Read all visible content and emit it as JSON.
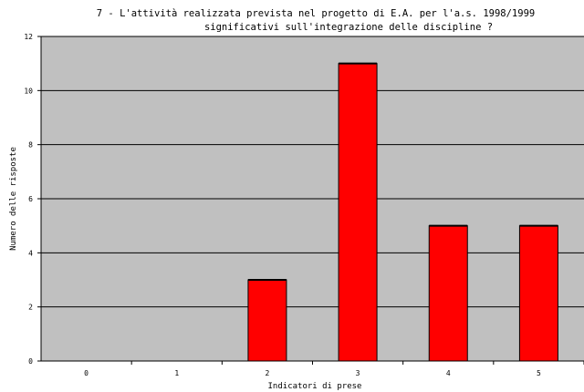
{
  "chart_data": {
    "type": "bar",
    "title_lines": [
      "7 - L'attività realizzata prevista nel progetto di E.A. per l'a.s. 1998/1999",
      "significativi sull'integrazione delle discipline ?"
    ],
    "xlabel": "Indicatori di prese",
    "ylabel": "Numero delle risposte",
    "categories": [
      "0",
      "1",
      "2",
      "3",
      "4",
      "5"
    ],
    "values": [
      0,
      0,
      3,
      11,
      5,
      5
    ],
    "ylim": [
      0,
      12
    ],
    "yticks": [
      0,
      2,
      4,
      6,
      8,
      10,
      12
    ],
    "grid": true,
    "legend": "none",
    "colors": {
      "bar": "#ff0000",
      "plot_background": "#c0c0c0",
      "gridline": "#000000"
    }
  }
}
